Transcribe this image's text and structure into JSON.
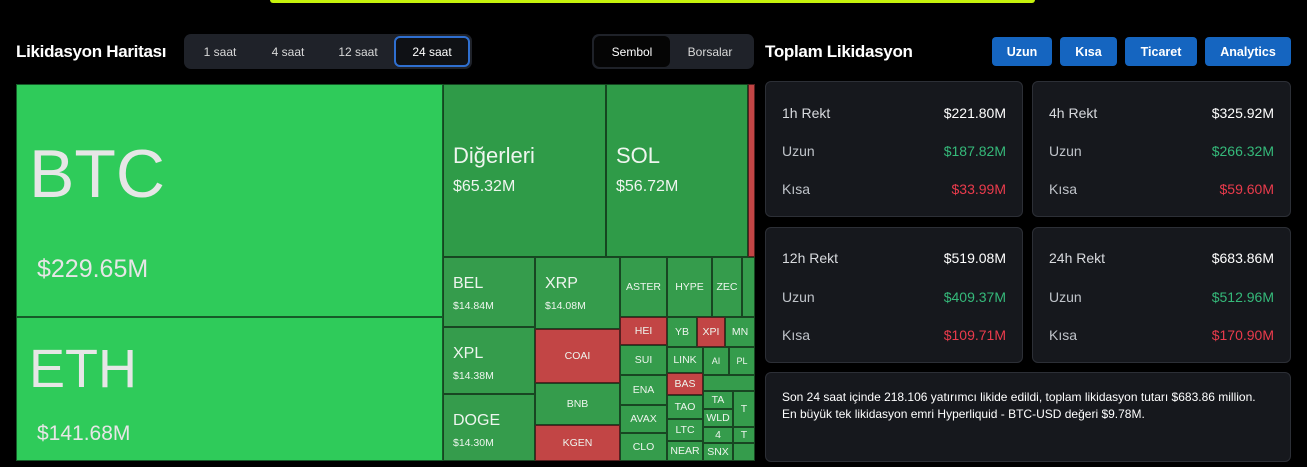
{
  "heatmap": {
    "title": "Likidasyon Haritası",
    "time_tabs": [
      "1 saat",
      "4 saat",
      "12 saat",
      "24 saat"
    ],
    "active_time_tab": "24 saat",
    "view_tabs": [
      "Sembol",
      "Borsalar"
    ],
    "active_view_tab": "Sembol",
    "tiles": {
      "btc": {
        "symbol": "BTC",
        "value": "$229.65M"
      },
      "eth": {
        "symbol": "ETH",
        "value": "$141.68M"
      },
      "others": {
        "symbol": "Diğerleri",
        "value": "$65.32M"
      },
      "sol": {
        "symbol": "SOL",
        "value": "$56.72M"
      },
      "bel": {
        "symbol": "BEL",
        "value": "$14.84M"
      },
      "xrp": {
        "symbol": "XRP",
        "value": "$14.08M"
      },
      "xpl": {
        "symbol": "XPL",
        "value": "$14.38M"
      },
      "doge": {
        "symbol": "DOGE",
        "value": "$14.30M"
      },
      "aster": "ASTER",
      "hype": "HYPE",
      "zec": "ZEC",
      "coai": "COAI",
      "bnb": "BNB",
      "kgen": "KGEN",
      "hei": "HEI",
      "yb": "YB",
      "xpi": "XPI",
      "mn": "MN",
      "sui": "SUI",
      "link": "LINK",
      "a": "AI",
      "pl": "PL",
      "ena": "ENA",
      "bas": "BAS",
      "avax": "AVAX",
      "tao": "TAO",
      "ta": "TA",
      "wld": "WLD",
      "ltc": "LTC",
      "four": "4",
      "t": "T",
      "t2": "T",
      "clo": "CLO",
      "near": "NEAR",
      "snx": "SNX"
    }
  },
  "totals": {
    "title": "Toplam Likidasyon",
    "buttons": [
      "Uzun",
      "Kısa",
      "Ticaret",
      "Analytics"
    ],
    "cards": [
      {
        "label": "1h Rekt",
        "total": "$221.80M",
        "long_label": "Uzun",
        "long": "$187.82M",
        "short_label": "Kısa",
        "short": "$33.99M"
      },
      {
        "label": "4h Rekt",
        "total": "$325.92M",
        "long_label": "Uzun",
        "long": "$266.32M",
        "short_label": "Kısa",
        "short": "$59.60M"
      },
      {
        "label": "12h Rekt",
        "total": "$519.08M",
        "long_label": "Uzun",
        "long": "$409.37M",
        "short_label": "Kısa",
        "short": "$109.71M"
      },
      {
        "label": "24h Rekt",
        "total": "$683.86M",
        "long_label": "Uzun",
        "long": "$512.96M",
        "short_label": "Kısa",
        "short": "$170.90M"
      }
    ],
    "summary_line1": "Son 24 saat içinde 218.106 yatırımcı likide edildi, toplam likidasyon tutarı $683.86 million.",
    "summary_line2": "En büyük tek likidasyon emri Hyperliquid - BTC-USD değeri $9.78M."
  },
  "colors": {
    "accent": "#1565c0",
    "long": "#35b97a",
    "short": "#ea3b4c",
    "tile_green": "#2fcb5a",
    "tile_red": "#c24545"
  }
}
